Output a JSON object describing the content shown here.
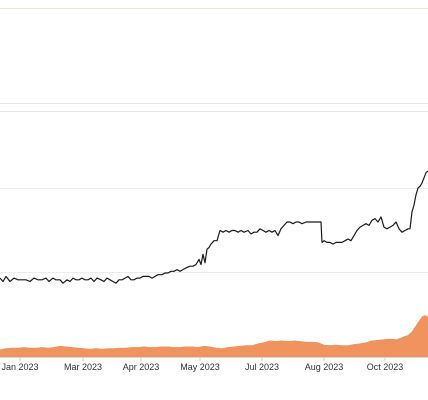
{
  "chart_data": {
    "type": "line",
    "title": "",
    "xlabel": "",
    "ylabel": "",
    "x_tick_labels": [
      "Jan 2023",
      "Mar 2023",
      "Apr 2023",
      "May 2023",
      "Jul 2023",
      "Aug 2023",
      "Oct 2023"
    ],
    "grid": true,
    "legend": "none",
    "series": [
      {
        "role": "price",
        "color": "#1a1a1a",
        "points": [
          [
            0.0,
            0.07
          ],
          [
            3.0,
            0.05
          ],
          [
            6.0,
            0.08
          ],
          [
            10.0,
            0.05
          ],
          [
            14.0,
            0.07
          ],
          [
            18.0,
            0.06
          ],
          [
            22.0,
            0.06
          ],
          [
            26.0,
            0.06
          ],
          [
            30.0,
            0.05
          ],
          [
            34.0,
            0.07
          ],
          [
            38.0,
            0.06
          ],
          [
            42.0,
            0.06
          ],
          [
            46.0,
            0.07
          ],
          [
            49.0,
            0.05
          ],
          [
            53.0,
            0.07
          ],
          [
            56.0,
            0.06
          ],
          [
            60.0,
            0.06
          ],
          [
            63.0,
            0.04
          ],
          [
            67.0,
            0.06
          ],
          [
            70.0,
            0.05
          ],
          [
            73.0,
            0.07
          ],
          [
            76.0,
            0.06
          ],
          [
            79.0,
            0.06
          ],
          [
            82.0,
            0.07
          ],
          [
            85.0,
            0.06
          ],
          [
            88.0,
            0.06
          ],
          [
            91.0,
            0.07
          ],
          [
            94.0,
            0.05
          ],
          [
            97.0,
            0.07
          ],
          [
            101.0,
            0.06
          ],
          [
            104.0,
            0.05
          ],
          [
            107.0,
            0.07
          ],
          [
            110.0,
            0.06
          ],
          [
            113.0,
            0.05
          ],
          [
            116.0,
            0.04
          ],
          [
            119.0,
            0.06
          ],
          [
            122.0,
            0.06
          ],
          [
            125.0,
            0.07
          ],
          [
            128.0,
            0.08
          ],
          [
            131.0,
            0.06
          ],
          [
            134.0,
            0.06
          ],
          [
            137.0,
            0.07
          ],
          [
            140.0,
            0.07
          ],
          [
            143.0,
            0.08
          ],
          [
            146.0,
            0.08
          ],
          [
            149.0,
            0.08
          ],
          [
            152.0,
            0.07
          ],
          [
            155.0,
            0.08
          ],
          [
            158.0,
            0.09
          ],
          [
            162.0,
            0.09
          ],
          [
            165.0,
            0.1
          ],
          [
            168.0,
            0.1
          ],
          [
            171.0,
            0.11
          ],
          [
            174.0,
            0.11
          ],
          [
            177.0,
            0.12
          ],
          [
            180.0,
            0.11
          ],
          [
            183.0,
            0.12
          ],
          [
            186.0,
            0.13
          ],
          [
            190.0,
            0.14
          ],
          [
            193.0,
            0.14
          ],
          [
            196.0,
            0.15
          ],
          [
            199.0,
            0.18
          ],
          [
            201.0,
            0.15
          ],
          [
            203.0,
            0.21
          ],
          [
            205.0,
            0.16
          ],
          [
            207.0,
            0.24
          ],
          [
            209.0,
            0.25
          ],
          [
            211.0,
            0.27
          ],
          [
            214.0,
            0.29
          ],
          [
            217.0,
            0.29
          ],
          [
            220.0,
            0.35
          ],
          [
            223.0,
            0.34
          ],
          [
            226.0,
            0.35
          ],
          [
            229.0,
            0.34
          ],
          [
            232.0,
            0.35
          ],
          [
            235.0,
            0.35
          ],
          [
            238.0,
            0.34
          ],
          [
            241.0,
            0.35
          ],
          [
            244.0,
            0.34
          ],
          [
            248.0,
            0.35
          ],
          [
            251.0,
            0.33
          ],
          [
            254.0,
            0.34
          ],
          [
            257.0,
            0.34
          ],
          [
            260.0,
            0.36
          ],
          [
            263.0,
            0.35
          ],
          [
            266.0,
            0.34
          ],
          [
            269.0,
            0.35
          ],
          [
            272.0,
            0.34
          ],
          [
            275.0,
            0.35
          ],
          [
            278.0,
            0.32
          ],
          [
            281.0,
            0.36
          ],
          [
            284.0,
            0.38
          ],
          [
            287.0,
            0.4
          ],
          [
            290.0,
            0.4
          ],
          [
            293.0,
            0.39
          ],
          [
            296.0,
            0.4
          ],
          [
            299.0,
            0.4
          ],
          [
            302.0,
            0.39
          ],
          [
            306.0,
            0.4
          ],
          [
            309.0,
            0.4
          ],
          [
            312.0,
            0.4
          ],
          [
            315.0,
            0.4
          ],
          [
            318.0,
            0.4
          ],
          [
            321.0,
            0.4
          ],
          [
            322.0,
            0.28
          ],
          [
            324.0,
            0.29
          ],
          [
            327.0,
            0.28
          ],
          [
            330.0,
            0.28
          ],
          [
            333.0,
            0.27
          ],
          [
            336.0,
            0.28
          ],
          [
            339.0,
            0.28
          ],
          [
            342.0,
            0.28
          ],
          [
            345.0,
            0.29
          ],
          [
            348.0,
            0.3
          ],
          [
            351.0,
            0.29
          ],
          [
            354.0,
            0.32
          ],
          [
            357.0,
            0.35
          ],
          [
            360.0,
            0.37
          ],
          [
            363.0,
            0.38
          ],
          [
            366.0,
            0.39
          ],
          [
            369.0,
            0.38
          ],
          [
            372.0,
            0.41
          ],
          [
            375.0,
            0.42
          ],
          [
            378.0,
            0.4
          ],
          [
            381.0,
            0.43
          ],
          [
            384.0,
            0.37
          ],
          [
            387.0,
            0.36
          ],
          [
            390.0,
            0.37
          ],
          [
            393.0,
            0.38
          ],
          [
            396.0,
            0.4
          ],
          [
            399.0,
            0.36
          ],
          [
            402.0,
            0.34
          ],
          [
            405.0,
            0.35
          ],
          [
            408.0,
            0.36
          ],
          [
            410.0,
            0.36
          ],
          [
            412.0,
            0.46
          ],
          [
            414.0,
            0.5
          ],
          [
            416.0,
            0.56
          ],
          [
            418.0,
            0.6
          ],
          [
            420.0,
            0.61
          ],
          [
            422.0,
            0.63
          ],
          [
            424.0,
            0.66
          ],
          [
            426.0,
            0.69
          ],
          [
            428.0,
            0.7
          ]
        ]
      },
      {
        "role": "volume",
        "type": "area",
        "color": "#f0935e",
        "points": [
          [
            0.0,
            0.12
          ],
          [
            6.0,
            0.14
          ],
          [
            12.0,
            0.15
          ],
          [
            18.0,
            0.15
          ],
          [
            24.0,
            0.16
          ],
          [
            30.0,
            0.15
          ],
          [
            36.0,
            0.15
          ],
          [
            42.0,
            0.16
          ],
          [
            48.0,
            0.15
          ],
          [
            54.0,
            0.16
          ],
          [
            60.0,
            0.18
          ],
          [
            66.0,
            0.17
          ],
          [
            72.0,
            0.16
          ],
          [
            78.0,
            0.15
          ],
          [
            84.0,
            0.14
          ],
          [
            90.0,
            0.13
          ],
          [
            96.0,
            0.14
          ],
          [
            102.0,
            0.13
          ],
          [
            108.0,
            0.14
          ],
          [
            114.0,
            0.14
          ],
          [
            120.0,
            0.15
          ],
          [
            126.0,
            0.15
          ],
          [
            132.0,
            0.16
          ],
          [
            138.0,
            0.16
          ],
          [
            144.0,
            0.17
          ],
          [
            150.0,
            0.16
          ],
          [
            156.0,
            0.16
          ],
          [
            162.0,
            0.17
          ],
          [
            168.0,
            0.17
          ],
          [
            174.0,
            0.16
          ],
          [
            180.0,
            0.16
          ],
          [
            186.0,
            0.17
          ],
          [
            192.0,
            0.17
          ],
          [
            198.0,
            0.16
          ],
          [
            204.0,
            0.18
          ],
          [
            210.0,
            0.17
          ],
          [
            216.0,
            0.15
          ],
          [
            222.0,
            0.14
          ],
          [
            228.0,
            0.16
          ],
          [
            234.0,
            0.17
          ],
          [
            240.0,
            0.18
          ],
          [
            246.0,
            0.19
          ],
          [
            252.0,
            0.19
          ],
          [
            258.0,
            0.22
          ],
          [
            264.0,
            0.24
          ],
          [
            270.0,
            0.27
          ],
          [
            276.0,
            0.26
          ],
          [
            282.0,
            0.27
          ],
          [
            288.0,
            0.26
          ],
          [
            294.0,
            0.27
          ],
          [
            300.0,
            0.26
          ],
          [
            306.0,
            0.25
          ],
          [
            312.0,
            0.25
          ],
          [
            318.0,
            0.24
          ],
          [
            324.0,
            0.2
          ],
          [
            330.0,
            0.19
          ],
          [
            336.0,
            0.2
          ],
          [
            342.0,
            0.19
          ],
          [
            348.0,
            0.19
          ],
          [
            354.0,
            0.21
          ],
          [
            360.0,
            0.22
          ],
          [
            366.0,
            0.24
          ],
          [
            372.0,
            0.27
          ],
          [
            378.0,
            0.28
          ],
          [
            384.0,
            0.29
          ],
          [
            390.0,
            0.3
          ],
          [
            396.0,
            0.29
          ],
          [
            400.0,
            0.31
          ],
          [
            404.0,
            0.34
          ],
          [
            408.0,
            0.36
          ],
          [
            412.0,
            0.42
          ],
          [
            416.0,
            0.52
          ],
          [
            420.0,
            0.62
          ],
          [
            423.0,
            0.68
          ],
          [
            426.0,
            0.69
          ],
          [
            428.0,
            0.66
          ]
        ]
      }
    ]
  }
}
